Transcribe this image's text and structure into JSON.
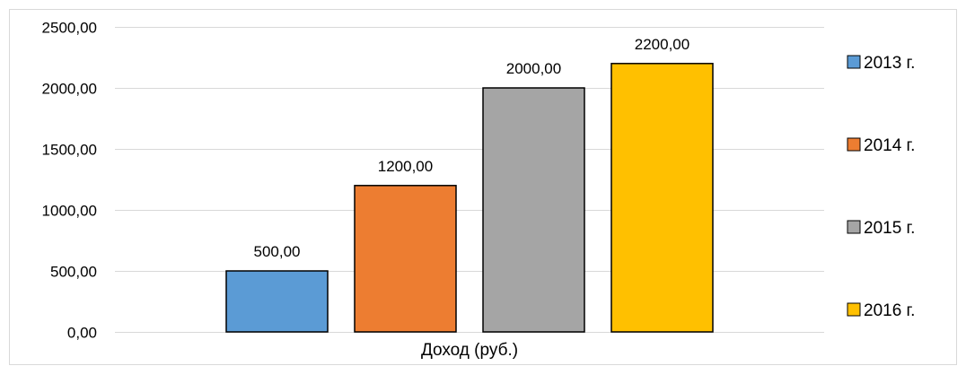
{
  "chart_data": {
    "type": "bar",
    "categories": [
      "Доход (руб.)"
    ],
    "series": [
      {
        "name": "2013 г.",
        "values": [
          500.0
        ],
        "label": "500,00",
        "color": "#5b9bd5"
      },
      {
        "name": "2014 г.",
        "values": [
          1200.0
        ],
        "label": "1200,00",
        "color": "#ed7d31"
      },
      {
        "name": "2015 г.",
        "values": [
          2000.0
        ],
        "label": "2000,00",
        "color": "#a5a5a5"
      },
      {
        "name": "2016 г.",
        "values": [
          2200.0
        ],
        "label": "2200,00",
        "color": "#ffc000"
      }
    ],
    "y_ticks": [
      {
        "value": 0,
        "label": "0,00"
      },
      {
        "value": 500,
        "label": "500,00"
      },
      {
        "value": 1000,
        "label": "1000,00"
      },
      {
        "value": 1500,
        "label": "1500,00"
      },
      {
        "value": 2000,
        "label": "2000,00"
      },
      {
        "value": 2500,
        "label": "2500,00"
      }
    ],
    "ylim": [
      0,
      2500
    ],
    "grid": true,
    "legend_position": "right",
    "title": "",
    "xlabel": "",
    "ylabel": ""
  }
}
